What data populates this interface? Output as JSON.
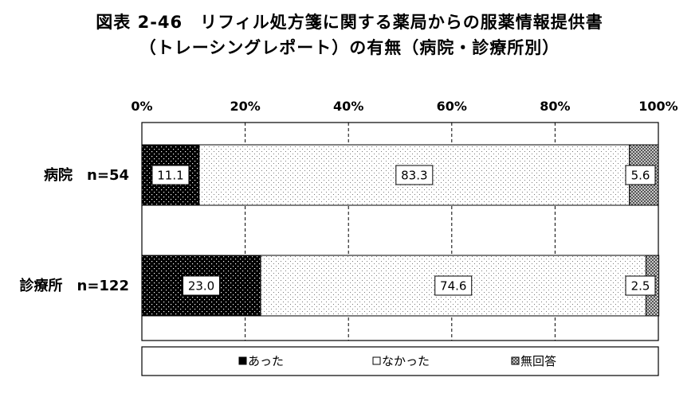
{
  "title_line1": "図表 2-46　リフィル処方箋に関する薬局からの服薬情報提供書",
  "title_line2": "（トレーシングレポート）の有無（病院・診療所別）",
  "chart_data": {
    "type": "bar",
    "orientation": "horizontal",
    "stacked": true,
    "percent": true,
    "categories": [
      "病院　n=54",
      "診療所　n=122"
    ],
    "series": [
      {
        "name": "あった",
        "values": [
          11.1,
          23.0
        ],
        "labels": [
          "11.1",
          "23.0"
        ],
        "color": "#000000",
        "pattern": "dots-white-on-black"
      },
      {
        "name": "なかった",
        "values": [
          83.3,
          74.6
        ],
        "labels": [
          "83.3",
          "74.6"
        ],
        "color": "#ffffff",
        "pattern": "dots-black-on-white"
      },
      {
        "name": "無回答",
        "values": [
          5.6,
          2.5
        ],
        "labels": [
          "5.6",
          "2.5"
        ],
        "color": "#999999",
        "pattern": "grey-checker"
      }
    ],
    "x_ticks": [
      "0%",
      "20%",
      "40%",
      "60%",
      "80%",
      "100%"
    ],
    "xlim": [
      0,
      100
    ],
    "grid": "vertical-dashed",
    "legend_position": "bottom"
  }
}
